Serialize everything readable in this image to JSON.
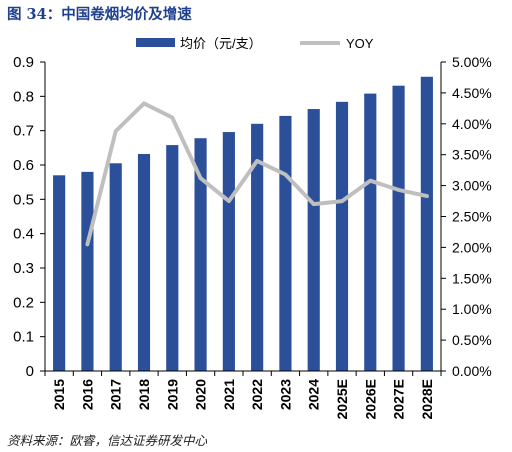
{
  "title": "图 34：中国卷烟均价及增速",
  "source": "资料来源：欧睿，信达证券研发中心",
  "chart_data": {
    "type": "bar",
    "categories": [
      "2015",
      "2016",
      "2017",
      "2018",
      "2019",
      "2020",
      "2021",
      "2022",
      "2023",
      "2024",
      "2025E",
      "2026E",
      "2027E",
      "2028E"
    ],
    "series": [
      {
        "name": "均价（元/支）",
        "type": "bar",
        "axis": "left",
        "color": "#2c4f99",
        "values": [
          0.57,
          0.58,
          0.605,
          0.632,
          0.658,
          0.678,
          0.696,
          0.72,
          0.743,
          0.763,
          0.784,
          0.808,
          0.831,
          0.857
        ]
      },
      {
        "name": "YOY",
        "type": "line",
        "axis": "right",
        "color": "#bfbfbf",
        "values": [
          null,
          0.0205,
          0.0388,
          0.0433,
          0.041,
          0.0312,
          0.0275,
          0.034,
          0.0318,
          0.027,
          0.0275,
          0.0308,
          0.0293,
          0.0283
        ]
      }
    ],
    "y_left": {
      "min": 0,
      "max": 0.9,
      "ticks": [
        0,
        0.1,
        0.2,
        0.3,
        0.4,
        0.5,
        0.6,
        0.7,
        0.8,
        0.9
      ],
      "tick_labels": [
        "0",
        "0.1",
        "0.2",
        "0.3",
        "0.4",
        "0.5",
        "0.6",
        "0.7",
        "0.8",
        "0.9"
      ]
    },
    "y_right": {
      "min": 0,
      "max": 0.05,
      "ticks": [
        0,
        0.005,
        0.01,
        0.015,
        0.02,
        0.025,
        0.03,
        0.035,
        0.04,
        0.045,
        0.05
      ],
      "tick_labels": [
        "0.00%",
        "0.50%",
        "1.00%",
        "1.50%",
        "2.00%",
        "2.50%",
        "3.00%",
        "3.50%",
        "4.00%",
        "4.50%",
        "5.00%"
      ]
    },
    "grid": false,
    "legend": "top-center"
  }
}
